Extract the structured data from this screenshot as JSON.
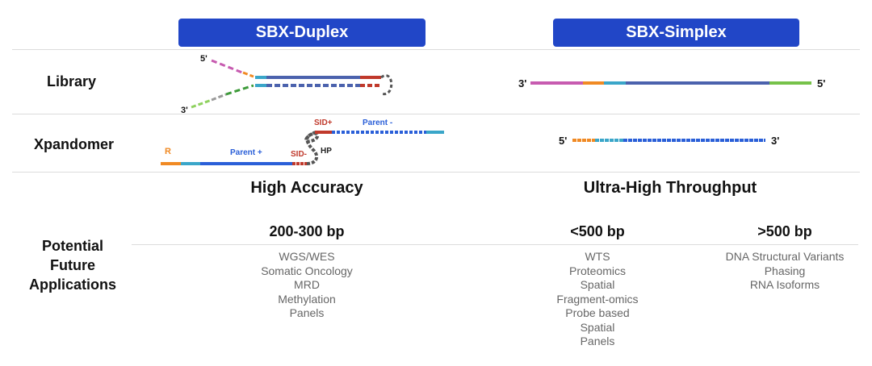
{
  "headers": {
    "duplex": "SBX-Duplex",
    "simplex": "SBX-Simplex"
  },
  "rows": {
    "library": "Library",
    "xpandomer": "Xpandomer",
    "applications": [
      "Potential",
      "Future",
      "Applications"
    ]
  },
  "library": {
    "duplex_five_prime": "5'",
    "duplex_three_prime": "3'",
    "simplex_left": "3'",
    "simplex_right": "5'"
  },
  "xpandomer": {
    "r": "R",
    "parent_plus": "Parent +",
    "parent_minus": "Parent -",
    "sid_plus": "SID+",
    "sid_minus": "SID-",
    "hp": "HP",
    "simplex_left": "5'",
    "simplex_right": "3'"
  },
  "duplex_section": {
    "title": "High Accuracy",
    "bp": "200-300 bp",
    "apps": [
      "WGS/WES",
      "Somatic Oncology",
      "MRD",
      "Methylation",
      "Panels"
    ]
  },
  "simplex_section": {
    "title": "Ultra-High Throughput",
    "lt500": {
      "bp": "<500 bp",
      "apps": [
        "WTS",
        "Proteomics",
        "Spatial",
        "Fragment-omics",
        "Probe based",
        "Spatial",
        "Panels"
      ]
    },
    "gt500": {
      "bp": ">500 bp",
      "apps": [
        "DNA Structural Variants",
        "Phasing",
        "RNA Isoforms"
      ]
    }
  },
  "colors": {
    "header_bg": "#2146c7",
    "magenta": "#c75bb0",
    "orange": "#f08a24",
    "teal": "#3aa6c9",
    "slate": "#4b62ad",
    "green": "#76c24a",
    "red": "#c0392b",
    "blue": "#2a5fd8",
    "grey": "#555555"
  }
}
